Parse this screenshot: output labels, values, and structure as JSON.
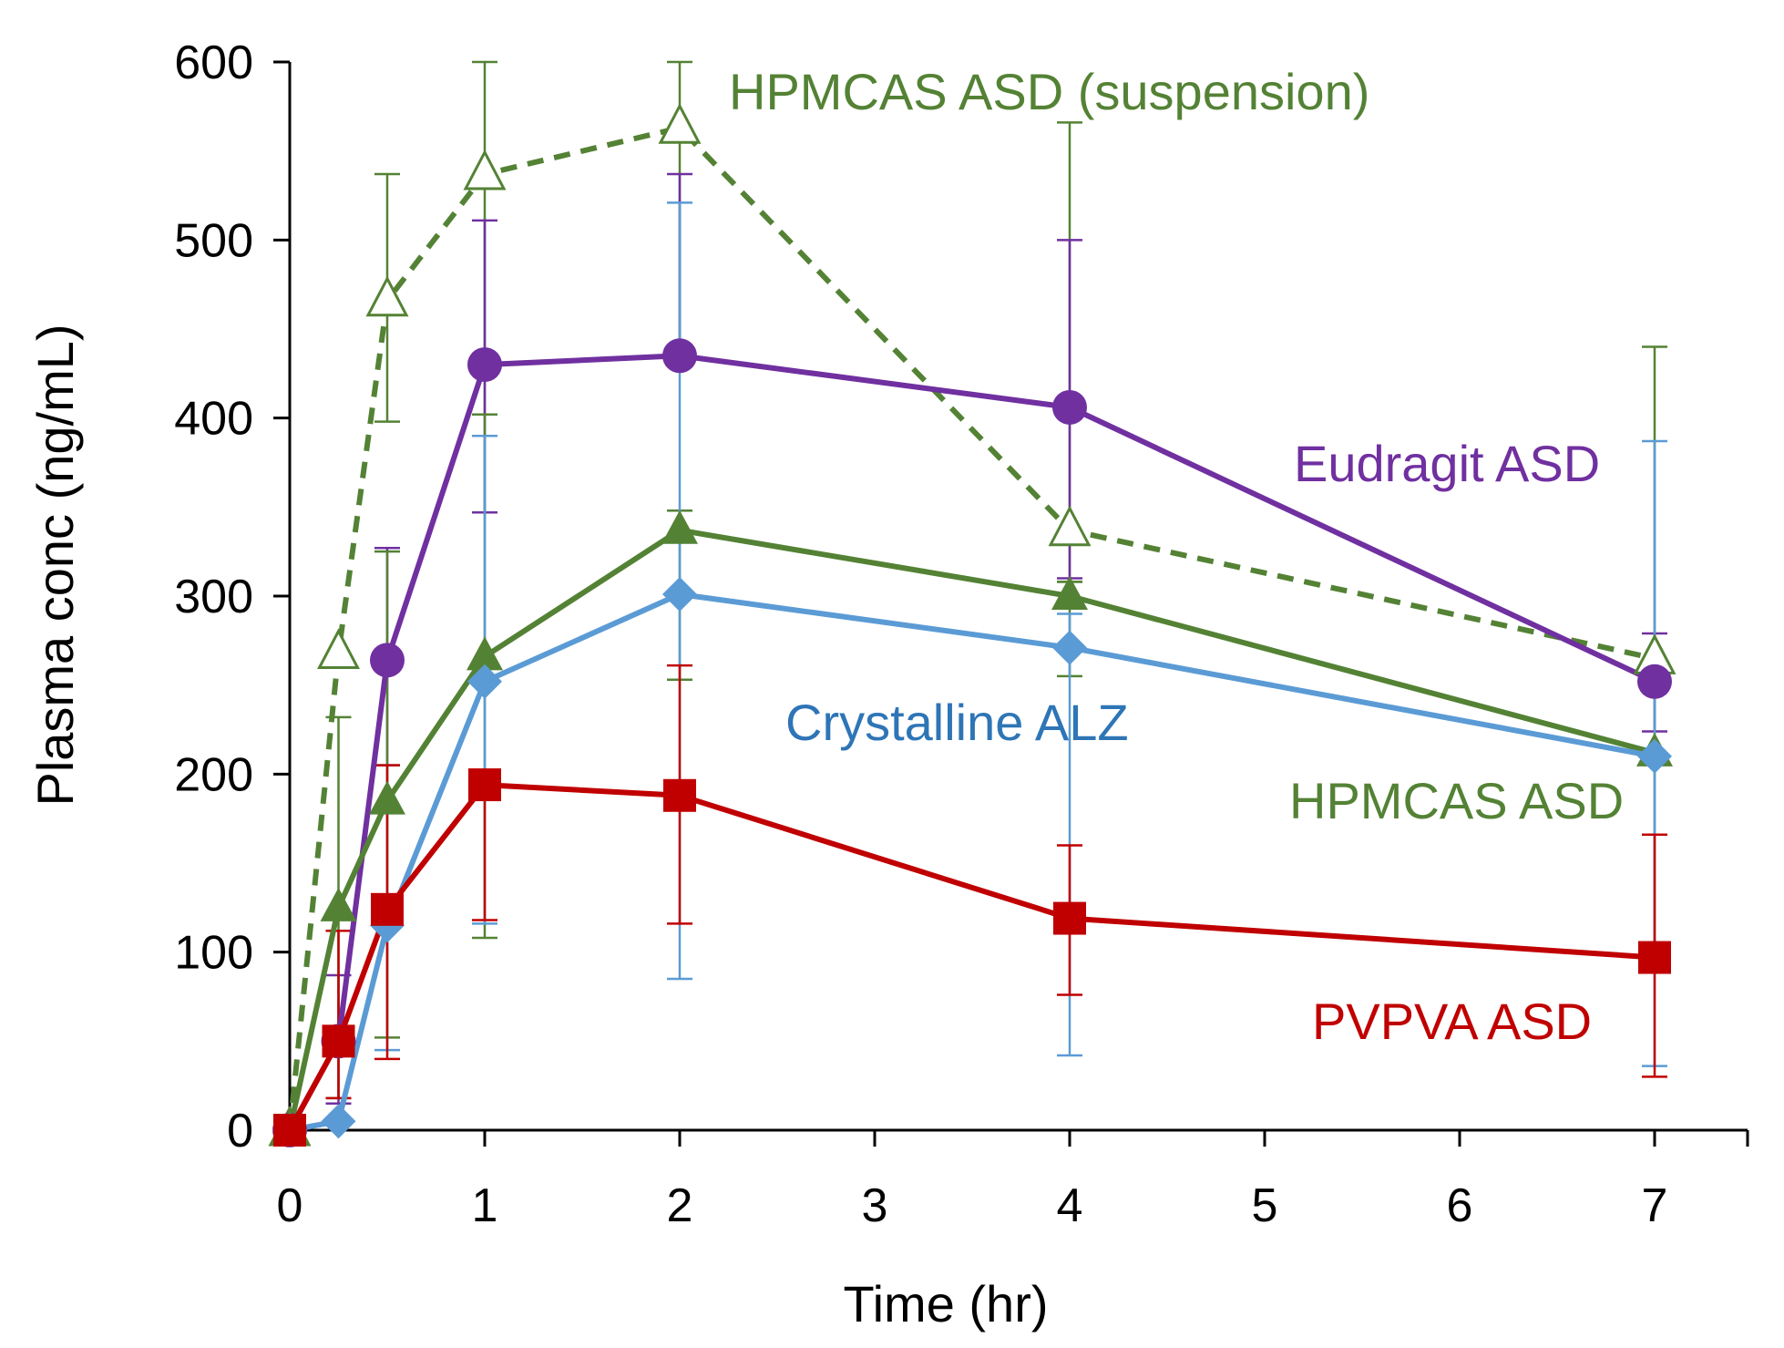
{
  "chart_data": {
    "type": "line",
    "xlabel": "Time (hr)",
    "ylabel": "Plasma conc (ng/mL)",
    "ylim": [
      0,
      600
    ],
    "x_ticks": [
      {
        "value": 0,
        "label": "0"
      },
      {
        "value": 1,
        "label": "1"
      },
      {
        "value": 2,
        "label": "2"
      },
      {
        "value": 3,
        "label": "3"
      },
      {
        "value": 4,
        "label": "4"
      },
      {
        "value": 5,
        "label": "5"
      },
      {
        "value": 6,
        "label": "6"
      },
      {
        "value": 7,
        "label": "7"
      }
    ],
    "y_ticks": [
      {
        "value": 0,
        "label": "0"
      },
      {
        "value": 100,
        "label": "100"
      },
      {
        "value": 200,
        "label": "200"
      },
      {
        "value": 300,
        "label": "300"
      },
      {
        "value": 400,
        "label": "400"
      },
      {
        "value": 500,
        "label": "500"
      },
      {
        "value": 600,
        "label": "600"
      }
    ],
    "grid": false,
    "series": [
      {
        "name": "HPMCAS ASD (suspension)",
        "color": "#548235",
        "marker": "open-triangle",
        "line_style": "dashed",
        "points": [
          {
            "x": 0,
            "y": 0,
            "err_low": 0,
            "err_high": 0
          },
          {
            "x": 0.25,
            "y": 268,
            "err_low": 232,
            "err_high": 232
          },
          {
            "x": 0.5,
            "y": 466,
            "err_low": 398,
            "err_high": 537
          },
          {
            "x": 1,
            "y": 537,
            "err_low": 402,
            "err_high": 600
          },
          {
            "x": 2,
            "y": 563,
            "err_low": 430,
            "err_high": 600
          },
          {
            "x": 4,
            "y": 337,
            "err_low": 308,
            "err_high": 566
          },
          {
            "x": 7,
            "y": 265,
            "err_low": 265,
            "err_high": 265
          }
        ]
      },
      {
        "name": "Eudragit ASD",
        "color": "#7030A0",
        "marker": "circle",
        "line_style": "solid",
        "points": [
          {
            "x": 0,
            "y": 0,
            "err_low": 0,
            "err_high": 0
          },
          {
            "x": 0.25,
            "y": 50,
            "err_low": 15,
            "err_high": 87
          },
          {
            "x": 0.5,
            "y": 264,
            "err_low": 205,
            "err_high": 327
          },
          {
            "x": 1,
            "y": 430,
            "err_low": 347,
            "err_high": 511
          },
          {
            "x": 2,
            "y": 435,
            "err_low": 430,
            "err_high": 537
          },
          {
            "x": 4,
            "y": 406,
            "err_low": 310,
            "err_high": 500
          },
          {
            "x": 7,
            "y": 252,
            "err_low": 224,
            "err_high": 279
          }
        ]
      },
      {
        "name": "HPMCAS ASD",
        "color": "#548235",
        "marker": "triangle",
        "line_style": "solid",
        "points": [
          {
            "x": 0,
            "y": 0,
            "err_low": 0,
            "err_high": 0
          },
          {
            "x": 0.25,
            "y": 125,
            "err_low": 18,
            "err_high": 232
          },
          {
            "x": 0.5,
            "y": 185,
            "err_low": 52,
            "err_high": 325
          },
          {
            "x": 1,
            "y": 266,
            "err_low": 108,
            "err_high": 402
          },
          {
            "x": 2,
            "y": 337,
            "err_low": 253,
            "err_high": 348
          },
          {
            "x": 4,
            "y": 300,
            "err_low": 255,
            "err_high": 308
          },
          {
            "x": 7,
            "y": 212,
            "err_low": 105,
            "err_high": 440
          }
        ]
      },
      {
        "name": "Crystalline ALZ",
        "color": "#5B9BD5",
        "marker": "diamond",
        "line_style": "solid",
        "points": [
          {
            "x": 0,
            "y": 0,
            "err_low": 0,
            "err_high": 0
          },
          {
            "x": 0.25,
            "y": 5,
            "err_low": 5,
            "err_high": 5
          },
          {
            "x": 0.5,
            "y": 115,
            "err_low": 45,
            "err_high": 205
          },
          {
            "x": 1,
            "y": 252,
            "err_low": 116,
            "err_high": 390
          },
          {
            "x": 2,
            "y": 301,
            "err_low": 85,
            "err_high": 521
          },
          {
            "x": 4,
            "y": 271,
            "err_low": 42,
            "err_high": 290
          },
          {
            "x": 7,
            "y": 210,
            "err_low": 36,
            "err_high": 387
          }
        ]
      },
      {
        "name": "PVPVA ASD",
        "color": "#C00000",
        "marker": "square",
        "line_style": "solid",
        "points": [
          {
            "x": 0,
            "y": 0,
            "err_low": 0,
            "err_high": 0
          },
          {
            "x": 0.25,
            "y": 50,
            "err_low": 18,
            "err_high": 112
          },
          {
            "x": 0.5,
            "y": 124,
            "err_low": 40,
            "err_high": 205
          },
          {
            "x": 1,
            "y": 194,
            "err_low": 118,
            "err_high": 194
          },
          {
            "x": 2,
            "y": 188,
            "err_low": 116,
            "err_high": 261
          },
          {
            "x": 4,
            "y": 119,
            "err_low": 76,
            "err_high": 160
          },
          {
            "x": 7,
            "y": 97,
            "err_low": 30,
            "err_high": 166
          }
        ]
      }
    ]
  }
}
